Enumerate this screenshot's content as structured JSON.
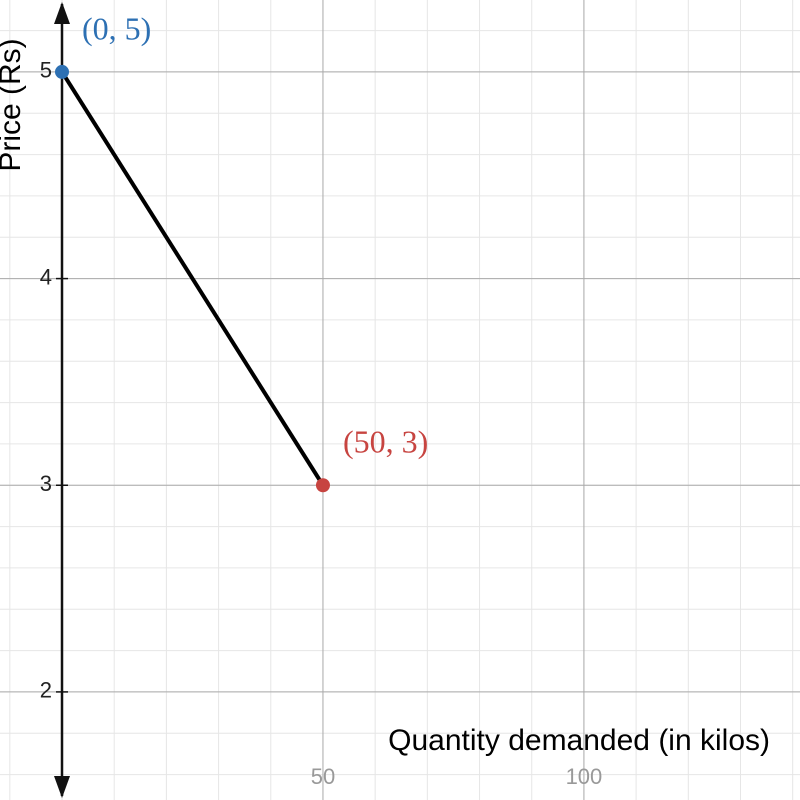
{
  "chart_data": {
    "type": "line",
    "xlabel": "Quantity demanded (in kilos)",
    "ylabel": "Price (Rs)",
    "x": [
      0,
      50
    ],
    "series": [
      {
        "color": "#000000",
        "values": [
          5,
          3
        ]
      }
    ],
    "points": [
      {
        "x": 0,
        "y": 5,
        "label": "(0, 5)",
        "color": "#2d70b3"
      },
      {
        "x": 50,
        "y": 3,
        "label": "(50, 3)",
        "color": "#c74440"
      }
    ],
    "xlim": [
      -11.88,
      141.4
    ],
    "ylim": [
      1.477,
      5.348
    ],
    "xticks": [
      50,
      100
    ],
    "yticks": [
      2,
      3,
      4,
      5
    ],
    "grid": true
  }
}
